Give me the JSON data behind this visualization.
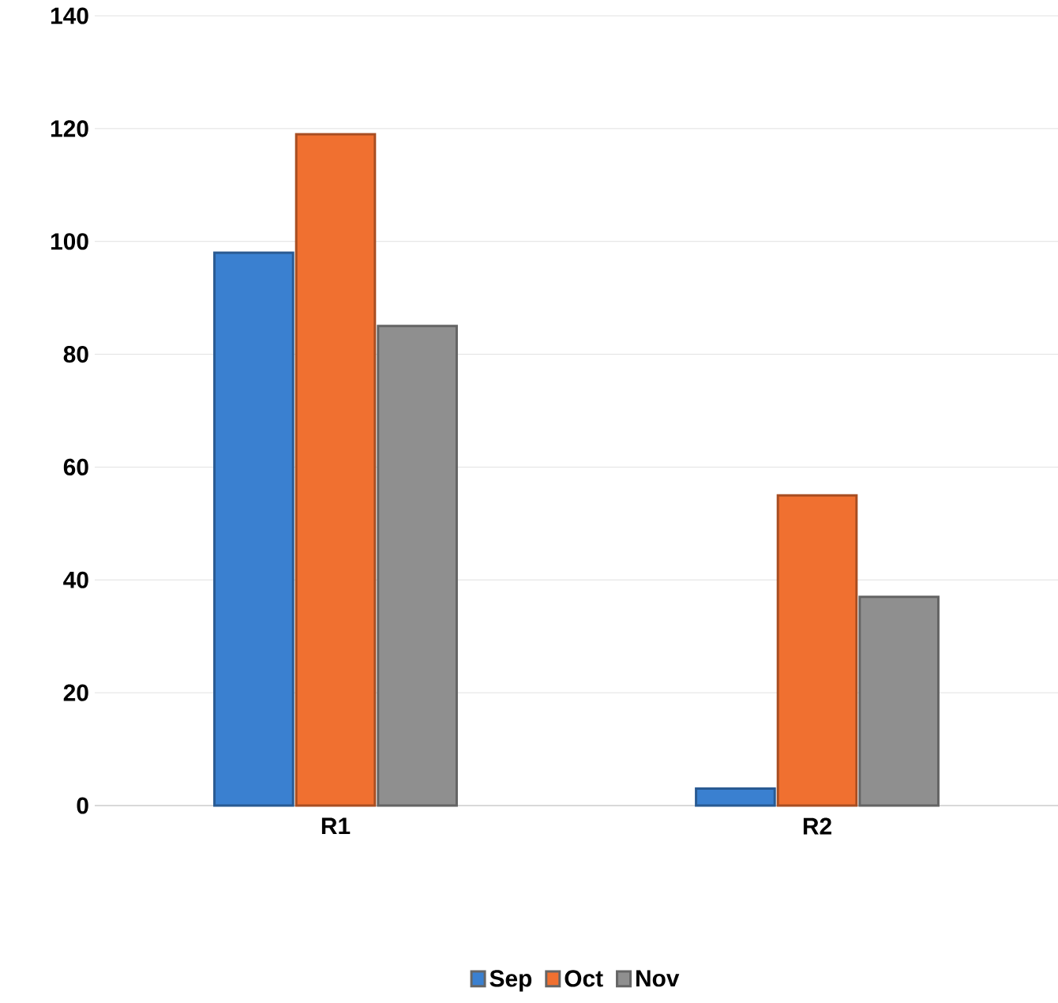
{
  "chart_data": {
    "type": "bar",
    "categories": [
      "R1",
      "R2"
    ],
    "series": [
      {
        "name": "Sep",
        "color": "#3a80d0",
        "values": [
          98,
          3
        ]
      },
      {
        "name": "Oct",
        "color": "#f07030",
        "values": [
          119,
          55
        ]
      },
      {
        "name": "Nov",
        "color": "#8f8f8f",
        "values": [
          85,
          37
        ]
      }
    ],
    "ylim": [
      0,
      140
    ],
    "yticks": [
      0,
      20,
      40,
      60,
      80,
      100,
      120,
      140
    ],
    "grid": "y",
    "legend": "bottom"
  }
}
